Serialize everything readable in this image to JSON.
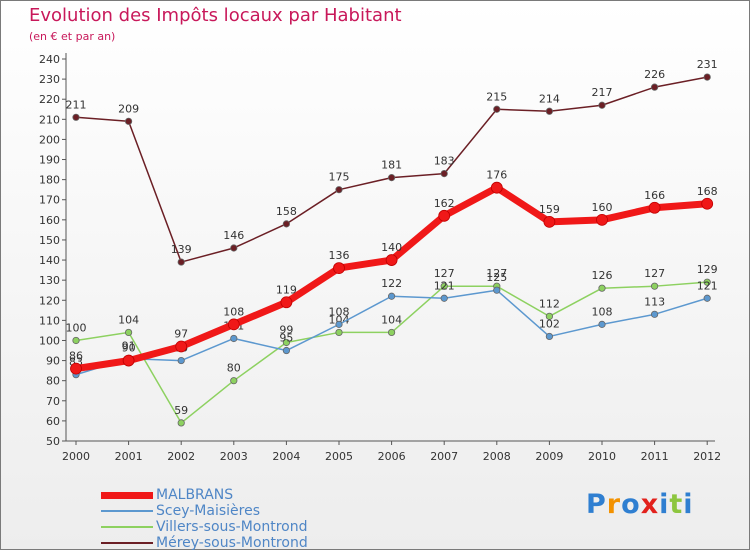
{
  "title": "Evolution des Impôts locaux par Habitant",
  "subtitle": "(en € et par an)",
  "logo": {
    "text": "Proxiti",
    "letters": [
      "P",
      "r",
      "o",
      "x",
      "i",
      "t",
      "i"
    ],
    "colors": [
      "#2f7fd1",
      "#f39200",
      "#2f7fd1",
      "#e2211c",
      "#2f7fd1",
      "#8dc63f",
      "#2f7fd1"
    ]
  },
  "chart_data": {
    "type": "line",
    "x": [
      "2000",
      "2001",
      "2002",
      "2003",
      "2004",
      "2005",
      "2006",
      "2007",
      "2008",
      "2009",
      "2010",
      "2011",
      "2012"
    ],
    "ylim": [
      50,
      240
    ],
    "yticks": [
      50,
      60,
      70,
      80,
      90,
      100,
      110,
      120,
      130,
      140,
      150,
      160,
      170,
      180,
      190,
      200,
      210,
      220,
      230,
      240
    ],
    "grid": false,
    "xlabel": "",
    "ylabel": "",
    "series": [
      {
        "name": "Mérey-sous-Montrond",
        "color": "#6b1f25",
        "values": [
          211,
          209,
          139,
          146,
          158,
          175,
          181,
          183,
          215,
          214,
          217,
          226,
          231
        ]
      },
      {
        "name": "Villers-sous-Montrond",
        "color": "#8dd160",
        "values": [
          100,
          104,
          59,
          80,
          99,
          104,
          104,
          127,
          127,
          112,
          126,
          127,
          129
        ]
      },
      {
        "name": "Scey-Maisières",
        "color": "#5c98cf",
        "values": [
          83,
          91,
          90,
          101,
          95,
          108,
          122,
          121,
          125,
          102,
          108,
          113,
          121
        ]
      },
      {
        "name": "MALBRANS",
        "color": "#f01818",
        "values": [
          86,
          90,
          97,
          108,
          119,
          136,
          140,
          162,
          176,
          159,
          160,
          166,
          168
        ]
      }
    ],
    "legend": [
      {
        "name": "MALBRANS",
        "color": "#f01818",
        "width": 7
      },
      {
        "name": "Scey-Maisières",
        "color": "#5c98cf",
        "width": 2
      },
      {
        "name": "Villers-sous-Montrond",
        "color": "#8dd160",
        "width": 2
      },
      {
        "name": "Mérey-sous-Montrond",
        "color": "#6b1f25",
        "width": 2
      }
    ]
  }
}
